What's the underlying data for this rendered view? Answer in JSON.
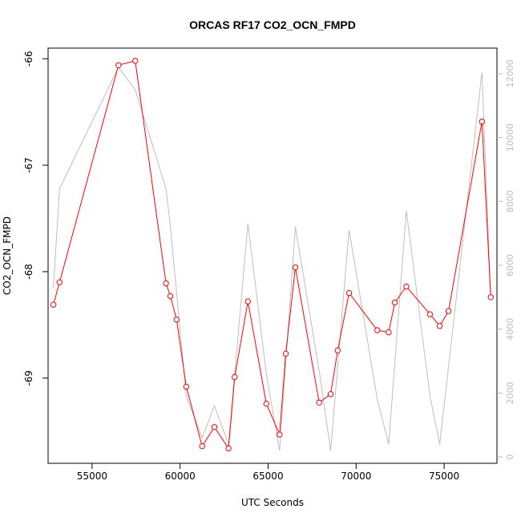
{
  "chart_data": {
    "type": "line",
    "title": "ORCAS RF17 CO2_OCN_FMPD",
    "xlabel": "UTC Seconds",
    "ylabel": "CO2_OCN_FMPD",
    "xlim": [
      52500,
      78000
    ],
    "ylim": [
      -69.8,
      -65.9
    ],
    "y2lim": [
      -200,
      12800
    ],
    "x_ticks": [
      55000,
      60000,
      65000,
      70000,
      75000
    ],
    "y_ticks": [
      -66,
      -67,
      -68,
      -69
    ],
    "y2_ticks": [
      0,
      2000,
      4000,
      6000,
      8000,
      10000,
      12000
    ],
    "grid": false,
    "series": [
      {
        "color": "#ff0000",
        "marker": "open-circle",
        "x": [
          52800,
          53150,
          56500,
          57450,
          59200,
          59450,
          59800,
          60350,
          61250,
          61950,
          62750,
          63100,
          63850,
          64900,
          65650,
          66000,
          66550,
          67900,
          68550,
          68950,
          69600,
          71200,
          71850,
          72200,
          72850,
          74200,
          74750,
          75250,
          77150,
          77650
        ],
        "y": [
          -68.31,
          -68.1,
          -66.06,
          -66.02,
          -68.11,
          -68.23,
          -68.45,
          -69.08,
          -69.64,
          -69.46,
          -69.66,
          -68.99,
          -68.28,
          -69.24,
          -69.53,
          -68.77,
          -67.96,
          -69.23,
          -69.15,
          -68.74,
          -68.2,
          -68.55,
          -68.57,
          -68.29,
          -68.14,
          -68.4,
          -68.51,
          -68.37,
          -66.59,
          -68.24
        ]
      },
      {
        "color": "#bebebe",
        "axis": "right",
        "x": [
          52800,
          53150,
          56500,
          57450,
          59200,
          59450,
          60350,
          61250,
          61950,
          62750,
          63850,
          64900,
          65650,
          66550,
          67900,
          68550,
          69600,
          71200,
          71850,
          72850,
          74200,
          74750,
          77150,
          77650
        ],
        "y": [
          5300,
          8400,
          12200,
          11500,
          8400,
          7200,
          1900,
          600,
          1600,
          400,
          7300,
          2600,
          200,
          7200,
          2700,
          200,
          7100,
          1800,
          400,
          7700,
          1900,
          400,
          12050,
          4900
        ]
      }
    ]
  }
}
